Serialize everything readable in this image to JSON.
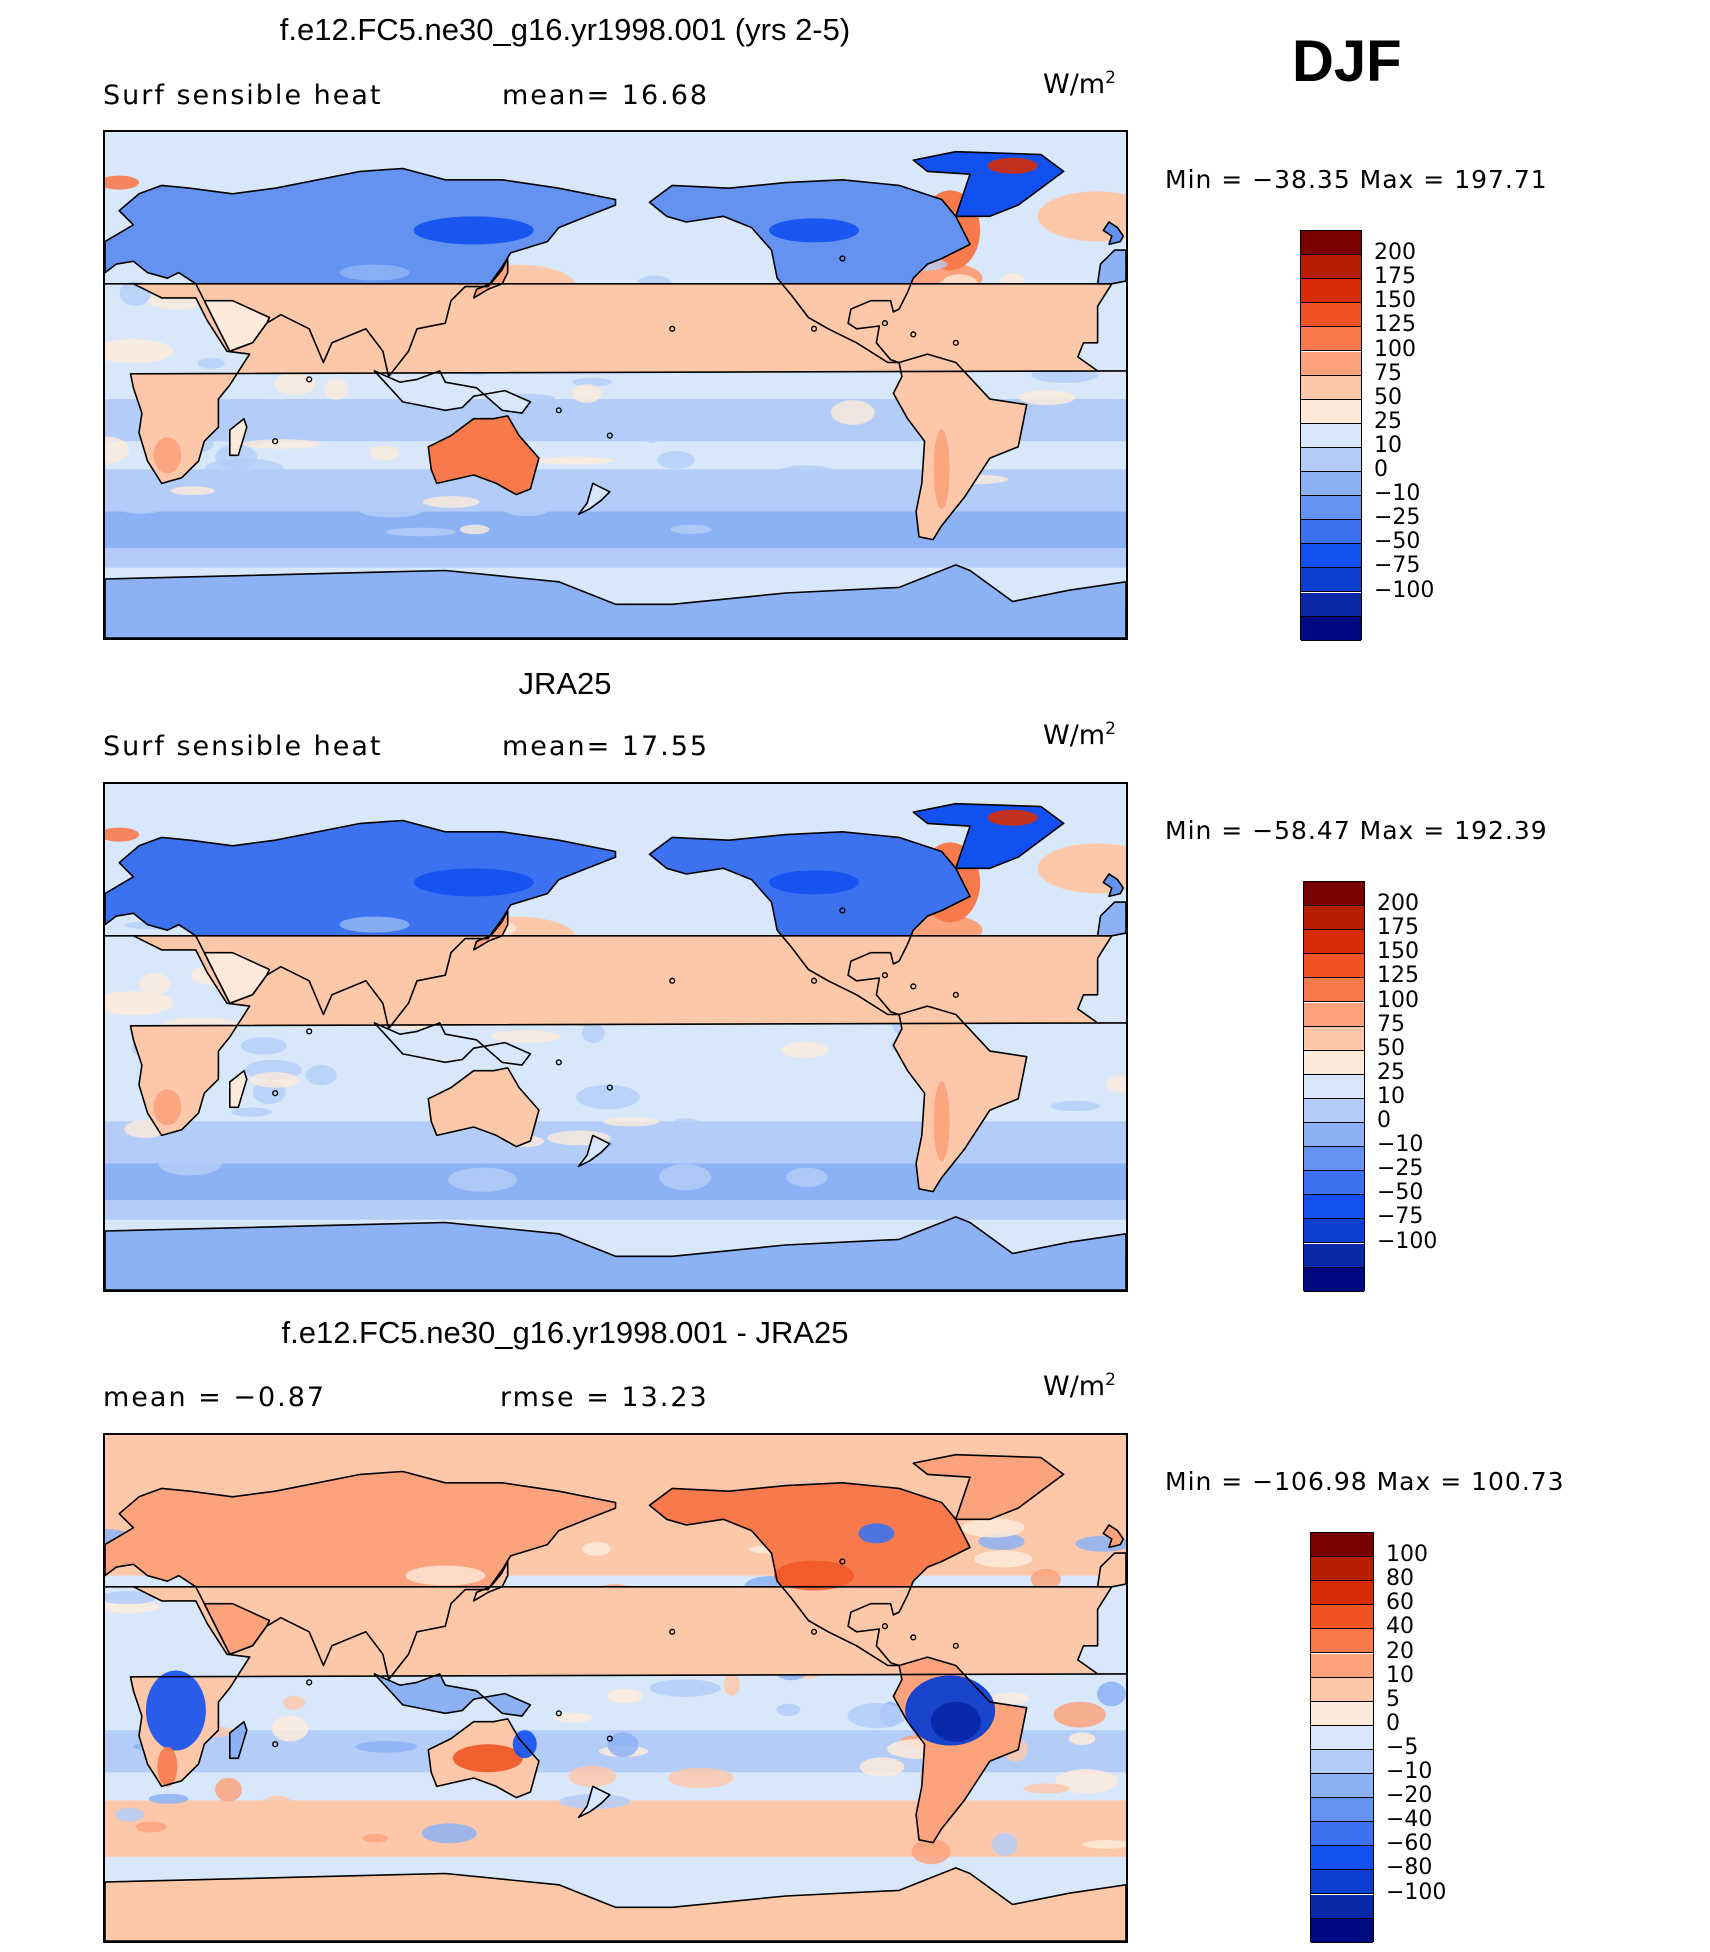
{
  "season": "DJF",
  "palettes": {
    "full": [
      "#000a80",
      "#0a28a8",
      "#0c3ed0",
      "#1250f0",
      "#3c72f0",
      "#6492f0",
      "#8cb2f5",
      "#b4cdf8",
      "#d8e8fa",
      "#fdeada",
      "#fdc8aa",
      "#fca27c",
      "#f87a4c",
      "#f05424",
      "#d82c08",
      "#b81e00",
      "#7a0000"
    ],
    "diff": [
      "#000a80",
      "#0a28a8",
      "#0c3ed0",
      "#1250f0",
      "#3c72f0",
      "#6492f0",
      "#8cb2f5",
      "#b4cdf8",
      "#d8e8fa",
      "#fdeada",
      "#fdc8aa",
      "#fca27c",
      "#f87a4c",
      "#f05424",
      "#d82c08",
      "#b81e00",
      "#7a0000"
    ]
  },
  "panels": [
    {
      "title": "f.e12.FC5.ne30_g16.yr1998.001 (yrs 2-5)",
      "left_text": "Surf  sensible  heat",
      "mid_text": "mean=   16.68",
      "units": "W/m",
      "units_sup": "2",
      "minmax": "Min  =  −38.35  Max  =  197.71",
      "colorbar_labels": [
        "200",
        "175",
        "150",
        "125",
        "100",
        "75",
        "50",
        "25",
        "10",
        "0",
        "−10",
        "−25",
        "−50",
        "−75",
        "−100"
      ],
      "map_kind": "model"
    },
    {
      "title": "JRA25",
      "left_text": "Surf  sensible  heat",
      "mid_text": "mean=   17.55",
      "units": "W/m",
      "units_sup": "2",
      "minmax": "Min  =  −58.47  Max  =  192.39",
      "colorbar_labels": [
        "200",
        "175",
        "150",
        "125",
        "100",
        "75",
        "50",
        "25",
        "10",
        "0",
        "−10",
        "−25",
        "−50",
        "−75",
        "−100"
      ],
      "map_kind": "obs"
    },
    {
      "title": "f.e12.FC5.ne30_g16.yr1998.001 - JRA25",
      "left_text": "mean  =    −0.87",
      "mid_text": "rmse  =    13.23",
      "units": "W/m",
      "units_sup": "2",
      "minmax": "Min  =  −106.98  Max  =  100.73",
      "colorbar_labels": [
        "100",
        "80",
        "60",
        "40",
        "20",
        "10",
        "5",
        "0",
        "−5",
        "−10",
        "−20",
        "−40",
        "−60",
        "−80",
        "−100"
      ],
      "map_kind": "diff"
    }
  ]
}
